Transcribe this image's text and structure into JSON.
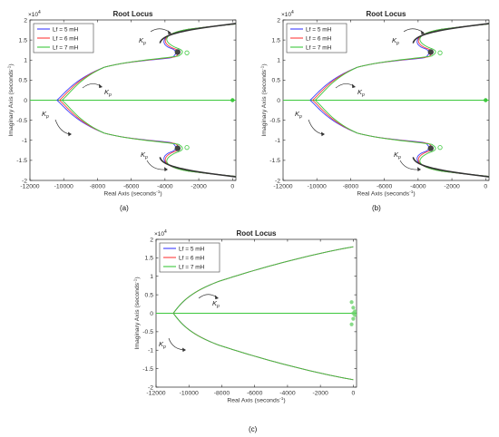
{
  "figure": {
    "panels": [
      {
        "caption": "(a)",
        "chart_data": {
          "type": "line",
          "title": "Root Locus",
          "xlabel": "Real Axis (seconds",
          "xlabel_sup": "-1",
          "ylabel": "Imaginary Axis (seconds",
          "ylabel_sup": "-1",
          "y_multiplier": "×10",
          "y_multiplier_exp": "4",
          "xlim": [
            -12000,
            200
          ],
          "ylim": [
            -20000,
            20000
          ],
          "xticks": [
            "-12000",
            "-10000",
            "-8000",
            "-6000",
            "-4000",
            "-2000",
            "0"
          ],
          "yticks": [
            "2",
            "1.5",
            "1",
            "0.5",
            "0",
            "-0.5",
            "-1",
            "-1.5",
            "-2"
          ],
          "grid": false,
          "legend_position": "top-left",
          "series": [
            {
              "name": "Lf = 5 mH",
              "color": "#3c3cff",
              "x": [
                -3300,
                -4200,
                -4000,
                -3000,
                -1000,
                200
              ],
              "y": [
                0,
                7500,
                14000,
                17000,
                18500,
                19500
              ],
              "start_x": -10400,
              "knee_x": -9400,
              "knee_y": 5200,
              "bend_x": -3600,
              "bend_y": 10000,
              "pole_x": -3200,
              "pole_y": 12000,
              "lower_x": -4300,
              "lower_y": 14000
            },
            {
              "name": "Lf = 6 mH",
              "color": "#ff3c3c",
              "x": [],
              "y": [],
              "start_x": -10250,
              "knee_x": -9250,
              "knee_y": 5300,
              "bend_x": -3400,
              "bend_y": 10200,
              "pole_x": -3050,
              "pole_y": 12000,
              "lower_x": -4200,
              "lower_y": 14200
            },
            {
              "name": "Lf = 7 mH",
              "color": "#3cc83c",
              "x": [],
              "y": [],
              "start_x": -10100,
              "knee_x": -9100,
              "knee_y": 5400,
              "bend_x": -3200,
              "bend_y": 10400,
              "pole_x": -2800,
              "pole_y": 12000,
              "lower_x": -4100,
              "lower_y": 14400
            }
          ],
          "annotations": [
            "K",
            "p"
          ]
        }
      },
      {
        "caption": "(b)",
        "chart_data": {
          "type": "line",
          "title": "Root Locus",
          "xlabel": "Real Axis (seconds",
          "xlabel_sup": "-1",
          "ylabel": "Imaginary Axis (seconds",
          "ylabel_sup": "-1",
          "y_multiplier": "×10",
          "y_multiplier_exp": "4",
          "xlim": [
            -12000,
            200
          ],
          "ylim": [
            -20000,
            20000
          ],
          "xticks": [
            "-12000",
            "-10000",
            "-8000",
            "-6000",
            "-4000",
            "-2000",
            "0"
          ],
          "yticks": [
            "2",
            "1.5",
            "1",
            "0.5",
            "0",
            "-0.5",
            "-1",
            "-1.5",
            "-2"
          ],
          "grid": false,
          "legend_position": "top-left",
          "series": [
            {
              "name": "Lf = 5 mH",
              "color": "#3c3cff",
              "start_x": -10400,
              "knee_x": -9400,
              "knee_y": 5200,
              "bend_x": -3600,
              "bend_y": 10000,
              "pole_x": -3200,
              "pole_y": 12000,
              "lower_x": -4300,
              "lower_y": 14000
            },
            {
              "name": "Lf = 6 mH",
              "color": "#ff3c3c",
              "start_x": -10250,
              "knee_x": -9250,
              "knee_y": 5300,
              "bend_x": -3400,
              "bend_y": 10200,
              "pole_x": -3050,
              "pole_y": 12000,
              "lower_x": -4200,
              "lower_y": 14200
            },
            {
              "name": "Lf = 7 mH",
              "color": "#3cc83c",
              "start_x": -10100,
              "knee_x": -9100,
              "knee_y": 5400,
              "bend_x": -3200,
              "bend_y": 10400,
              "pole_x": -2800,
              "pole_y": 12000,
              "lower_x": -4100,
              "lower_y": 14400
            }
          ],
          "annotations": [
            "K",
            "p"
          ]
        }
      },
      {
        "caption": "(c)",
        "chart_data": {
          "type": "line",
          "title": "Root Locus",
          "xlabel": "Real Axis (seconds",
          "xlabel_sup": "-1",
          "ylabel": "Imaginary Axis (seconds",
          "ylabel_sup": "-1",
          "y_multiplier": "×10",
          "y_multiplier_exp": "4",
          "xlim": [
            -12000,
            200
          ],
          "ylim": [
            -20000,
            20000
          ],
          "xticks": [
            "-12000",
            "-10000",
            "-8000",
            "-6000",
            "-4000",
            "-2000",
            "0"
          ],
          "yticks": [
            "2",
            "1.5",
            "1",
            "0.5",
            "0",
            "-0.5",
            "-1",
            "-1.5",
            "-2"
          ],
          "grid": false,
          "legend_position": "top-left",
          "series": [
            {
              "name": "Lf = 5 mH",
              "color": "#3c3cff",
              "start_x": -10950
            },
            {
              "name": "Lf = 6 mH",
              "color": "#ff3c3c",
              "start_x": -10950
            },
            {
              "name": "Lf = 7 mH",
              "color": "#3cc83c",
              "start_x": -10950
            }
          ],
          "annotations": [
            "K",
            "p"
          ]
        }
      }
    ]
  }
}
